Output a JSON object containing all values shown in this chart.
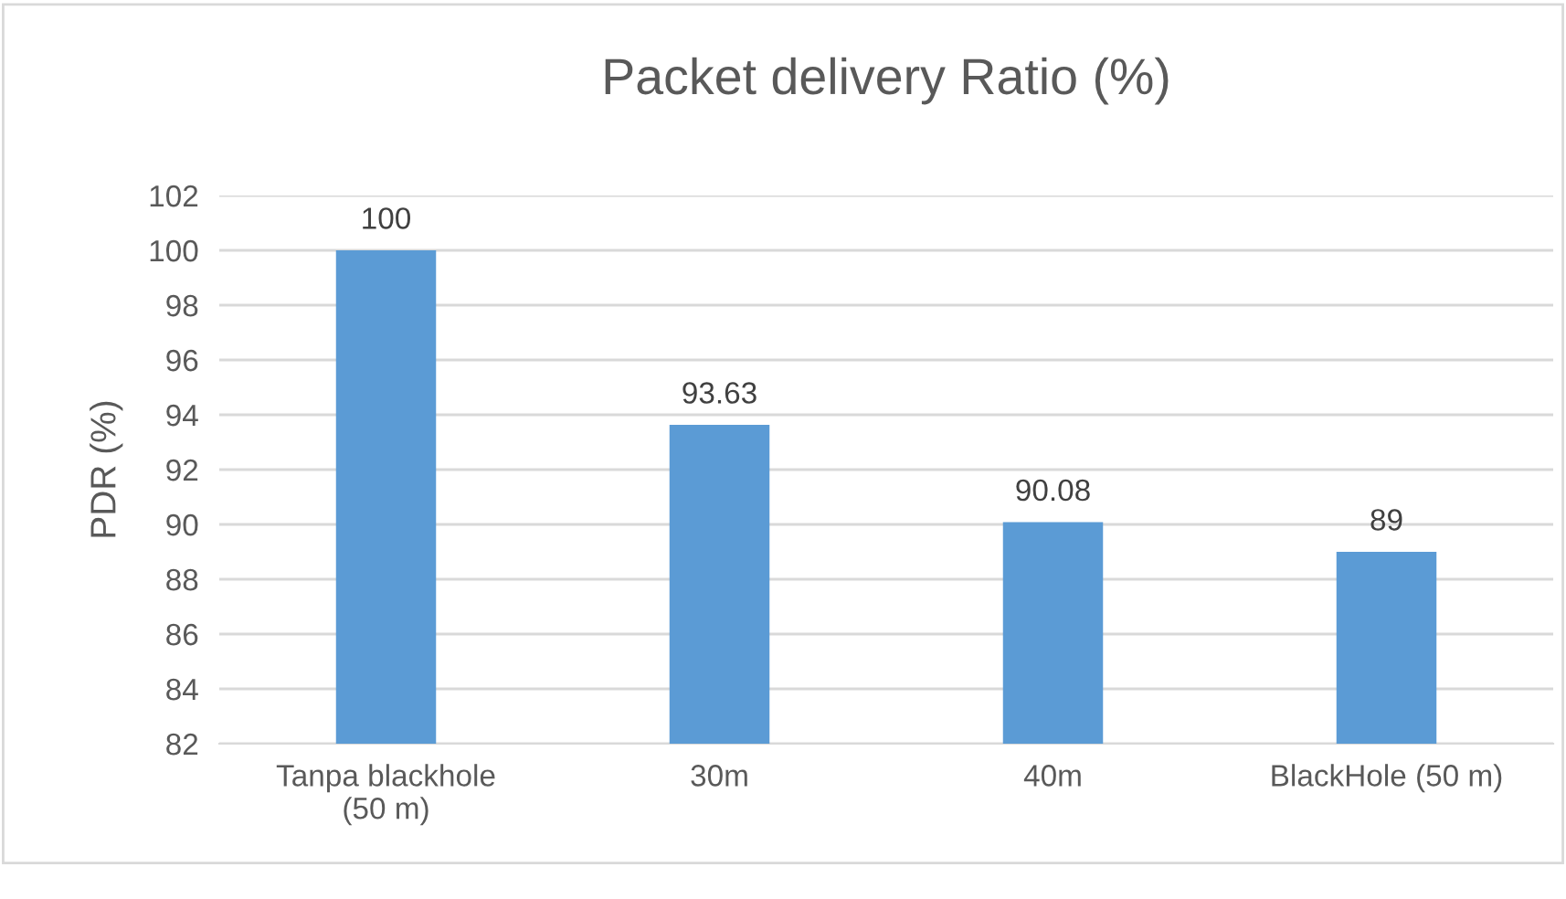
{
  "chart_data": {
    "type": "bar",
    "title": "Packet delivery Ratio (%)",
    "ylabel": "PDR (%)",
    "categories": [
      "Tanpa blackhole\n(50 m)",
      "30m",
      "40m",
      "BlackHole (50 m)"
    ],
    "values": [
      100,
      93.63,
      90.08,
      89
    ],
    "color": "#5b9bd5",
    "ylim": [
      82,
      102
    ],
    "yticks": [
      82,
      84,
      86,
      88,
      90,
      92,
      94,
      96,
      98,
      100,
      102
    ],
    "grid": "y",
    "data_labels": true
  }
}
